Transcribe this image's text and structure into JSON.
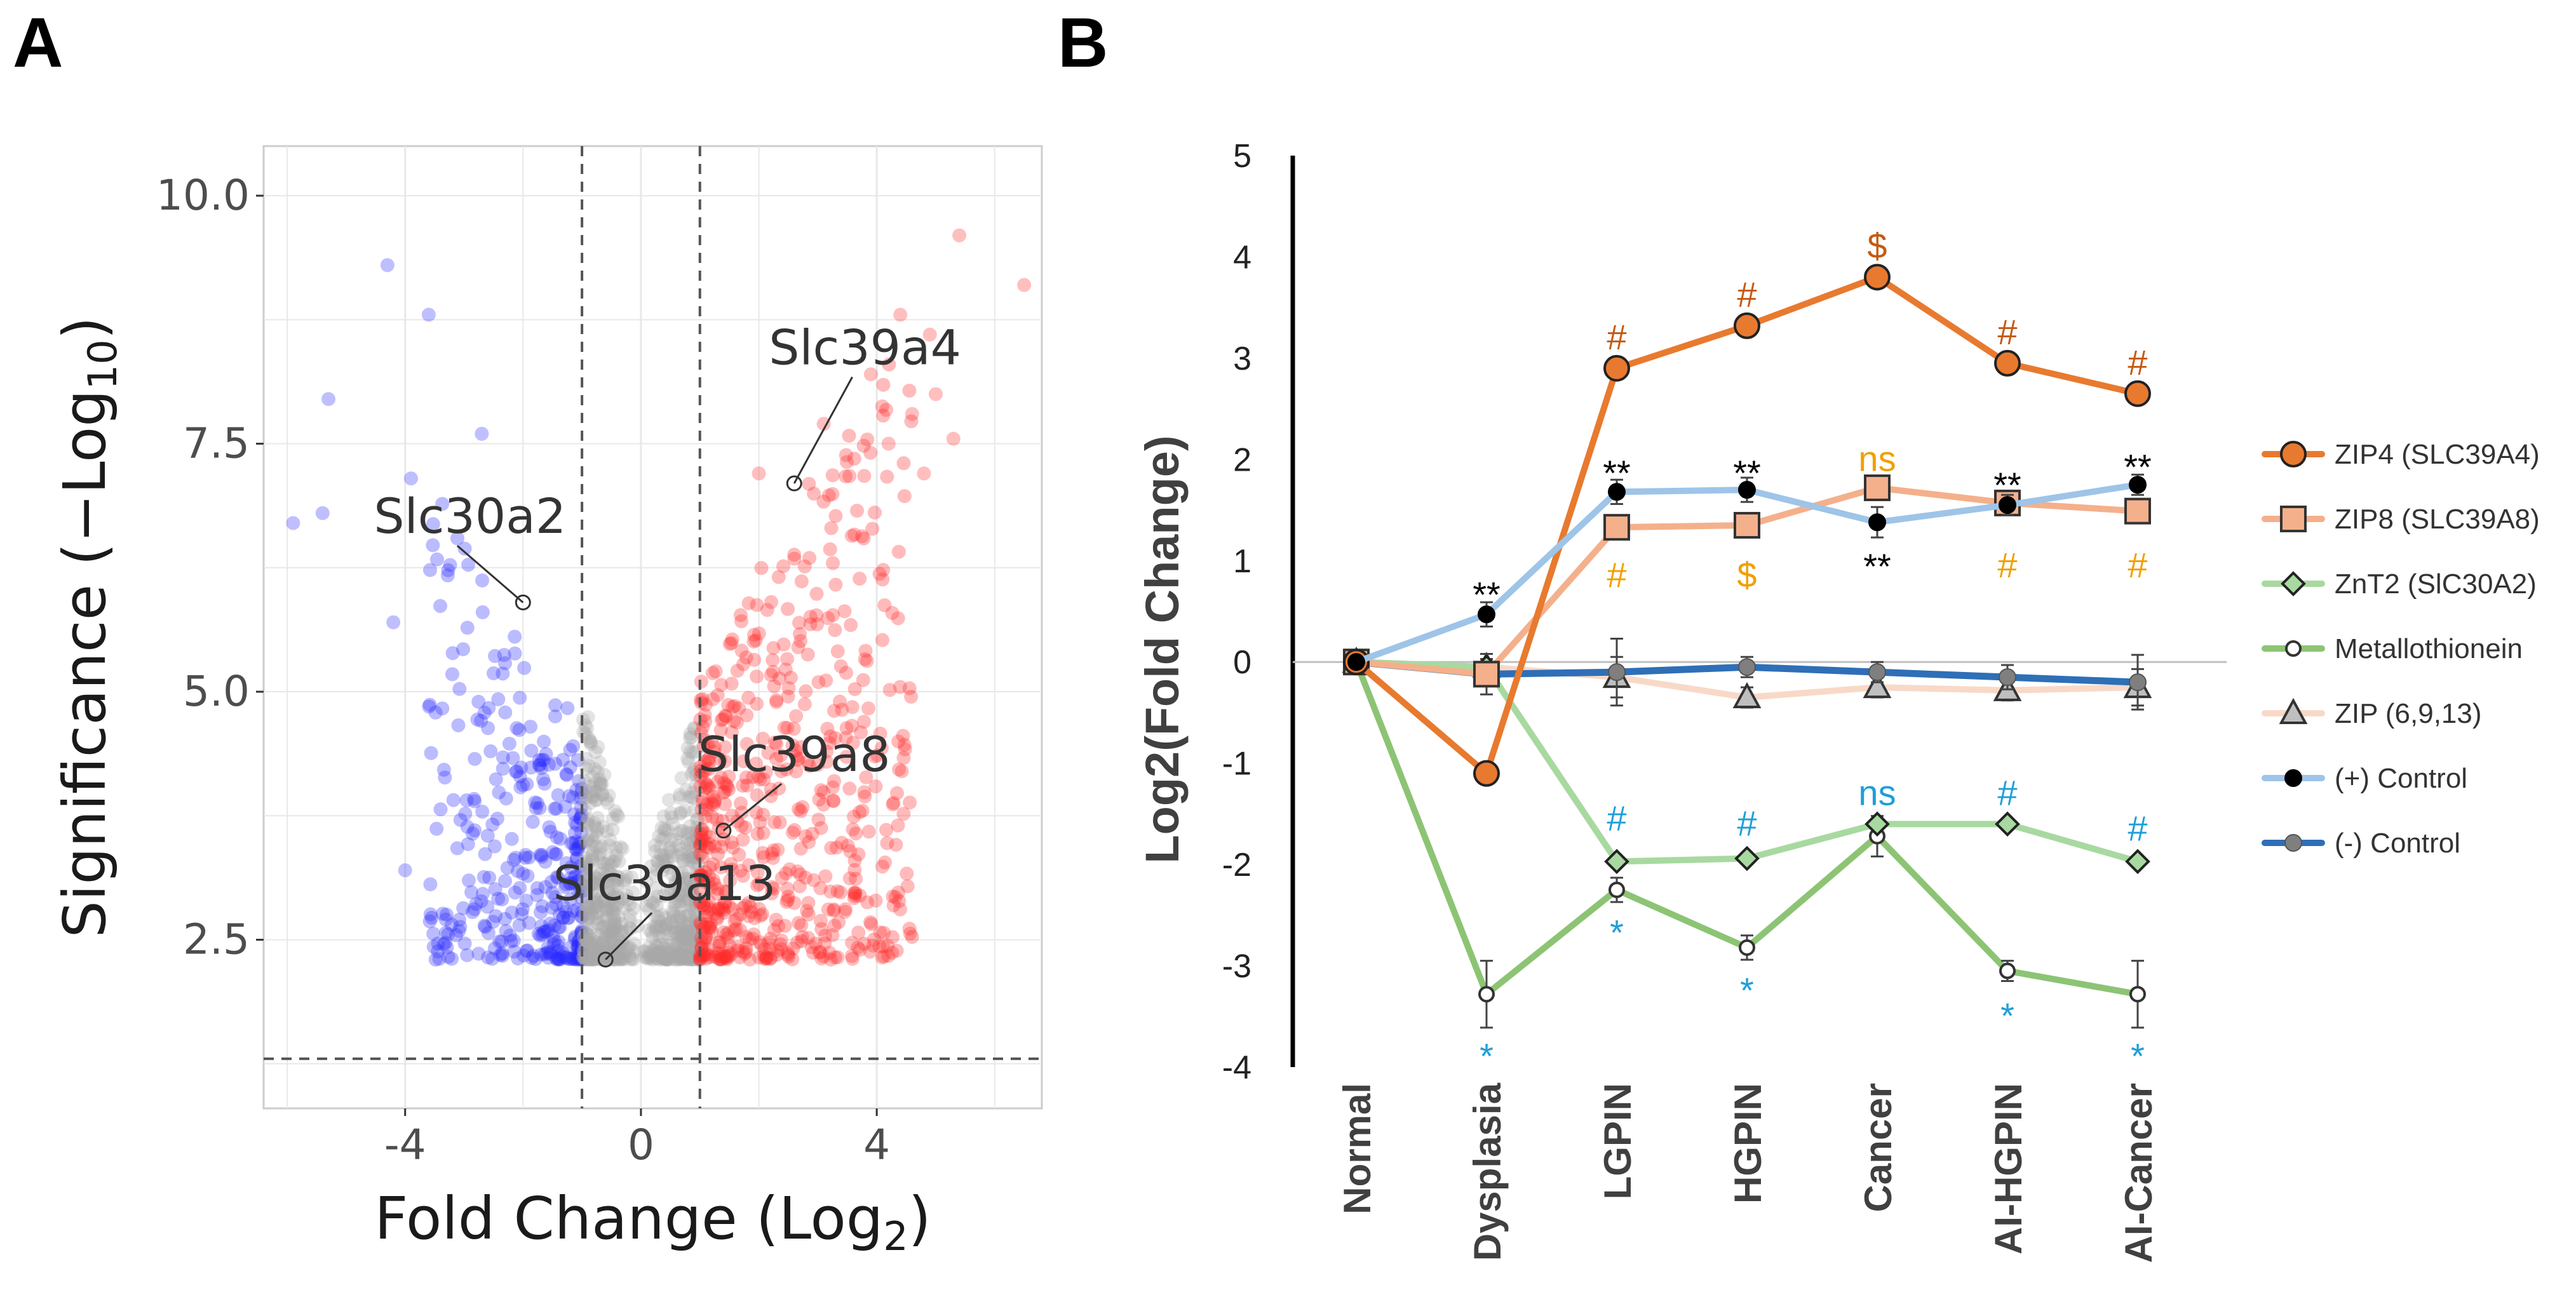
{
  "panel_labels": {
    "a": "A",
    "b": "B"
  },
  "colors": {
    "up": "#ff2a2a",
    "down": "#2a2aff",
    "ns": "#a8a8a8",
    "zip4": "#e87a2f",
    "zip8": "#f4b08b",
    "znt2": "#a8d9a0",
    "mt": "#8cc474",
    "zip6913": "#f8d9c8",
    "pos": "#9ec4e8",
    "neg": "#2e6fb7",
    "ann_hash": "#c55a11",
    "ann_ns": "#f0a000",
    "ann_blue": "#1f9fd8",
    "ann_black": "#000000"
  },
  "chart_data": [
    {
      "id": "volcano",
      "type": "scatter",
      "title": "",
      "xlabel_main": "Fold Change (Log",
      "xlabel_sub": "2",
      "xlabel_end": ")",
      "ylabel_main": "Significance (−Log",
      "ylabel_sub": "10",
      "ylabel_end": ")",
      "xlim": [
        -6.4,
        6.8
      ],
      "ylim": [
        0.8,
        10.5
      ],
      "x_ticks": [
        -4,
        0,
        4
      ],
      "x_tick_labels": [
        "-4",
        "0",
        "4"
      ],
      "y_ticks": [
        2.5,
        5.0,
        7.5,
        10.0
      ],
      "y_tick_labels": [
        "2.5",
        "5.0",
        "7.5",
        "10.0"
      ],
      "fc_cutoffs": [
        -1,
        1
      ],
      "p_cutoff": 1.3,
      "labelled_genes": [
        {
          "name": "Slc39a4",
          "x": 2.6,
          "y": 7.1,
          "label_x": 3.8,
          "label_y": 8.3
        },
        {
          "name": "Slc30a2",
          "x": -2.0,
          "y": 5.9,
          "label_x": -2.9,
          "label_y": 6.6
        },
        {
          "name": "Slc39a8",
          "x": 1.4,
          "y": 3.6,
          "label_x": 2.6,
          "label_y": 4.2
        },
        {
          "name": "Slc39a13",
          "x": -0.6,
          "y": 2.3,
          "label_x": 0.4,
          "label_y": 2.9
        }
      ],
      "outliers": [
        [
          -4.3,
          9.3
        ],
        [
          -3.6,
          8.8
        ],
        [
          -5.3,
          7.95
        ],
        [
          -2.7,
          7.6
        ],
        [
          -5.4,
          6.8
        ],
        [
          -5.9,
          6.7
        ],
        [
          -3.9,
          7.15
        ],
        [
          -4.2,
          5.7
        ],
        [
          -4.0,
          3.2
        ],
        [
          5.4,
          9.6
        ],
        [
          6.5,
          9.1
        ],
        [
          4.4,
          8.8
        ],
        [
          4.9,
          8.6
        ],
        [
          3.9,
          8.2
        ],
        [
          5.0,
          8.0
        ],
        [
          4.6,
          7.8
        ],
        [
          5.3,
          7.55
        ],
        [
          4.2,
          7.5
        ],
        [
          2.0,
          7.2
        ],
        [
          3.1,
          7.7
        ],
        [
          4.8,
          7.2
        ]
      ],
      "series": [
        {
          "name": "down",
          "x_range": [
            -3.6,
            -1.0
          ],
          "y_range": [
            2.3,
            6.9
          ],
          "count": 360
        },
        {
          "name": "ns",
          "x_range": [
            -1.0,
            1.0
          ],
          "y_range": [
            2.3,
            5.0
          ],
          "count": 700
        },
        {
          "name": "up",
          "x_range": [
            1.0,
            4.6
          ],
          "y_range": [
            2.3,
            8.3
          ],
          "count": 620
        }
      ]
    },
    {
      "id": "line-panel",
      "type": "line",
      "ylabel": "Log2(Fold Change)",
      "xlabel": "",
      "ylim": [
        -4,
        5
      ],
      "y_ticks": [
        5,
        4,
        3,
        2,
        1,
        0,
        -1,
        -2,
        -3,
        -4
      ],
      "y_tick_labels": [
        "5",
        "4",
        "3",
        "2",
        "1",
        "0",
        "-1",
        "-2",
        "-3",
        "-4"
      ],
      "categories": [
        "Normal",
        "Dysplasia",
        "LGPIN",
        "HGPIN",
        "Cancer",
        "AI-HGPIN",
        "AI-Cancer"
      ],
      "series": [
        {
          "name": "ZIP (6,9,13)",
          "key": "zip6913",
          "marker": "triangle",
          "fill": "#bfbfbf",
          "values": [
            0,
            -0.05,
            -0.15,
            -0.35,
            -0.25,
            -0.28,
            -0.25
          ],
          "err": [
            0,
            0.08,
            0.2,
            0.1,
            0.1,
            0.1,
            0.18
          ]
        },
        {
          "name": "(-) Control",
          "key": "neg",
          "marker": "dot",
          "fill": "#7f7f7f",
          "values": [
            0,
            -0.12,
            -0.1,
            -0.05,
            -0.1,
            -0.15,
            -0.2
          ],
          "err": [
            0,
            0.2,
            0.33,
            0.1,
            0.1,
            0.12,
            0.27
          ]
        },
        {
          "name": "Metallothionein",
          "key": "mt",
          "marker": "ring",
          "fill": "#ffffff",
          "values": [
            0,
            -3.28,
            -2.25,
            -2.82,
            -1.72,
            -3.05,
            -3.28
          ],
          "err": [
            0,
            0.33,
            0.12,
            0.12,
            0.2,
            0.1,
            0.33
          ]
        },
        {
          "name": "ZnT2 (SlC30A2)",
          "key": "znt2",
          "marker": "diamond",
          "fill": "#a8d9a0",
          "values": [
            0,
            -0.05,
            -1.97,
            -1.94,
            -1.6,
            -1.6,
            -1.97
          ],
          "err": [
            0,
            0,
            0,
            0,
            0,
            0,
            0
          ]
        },
        {
          "name": "ZIP8 (SLC39A8)",
          "key": "zip8",
          "marker": "square",
          "fill": "#f4b08b",
          "values": [
            0,
            -0.12,
            1.33,
            1.35,
            1.72,
            1.57,
            1.49
          ],
          "err": [
            0,
            0,
            0,
            0,
            0,
            0,
            0
          ]
        },
        {
          "name": "ZIP4 (SLC39A4)",
          "key": "zip4",
          "marker": "circle",
          "fill": "#e87a2f",
          "values": [
            0,
            -1.1,
            2.9,
            3.32,
            3.8,
            2.95,
            2.65
          ],
          "err": [
            0,
            0,
            0,
            0,
            0,
            0,
            0
          ]
        },
        {
          "name": "(+) Control",
          "key": "pos",
          "marker": "dot",
          "fill": "#000000",
          "values": [
            0,
            0.47,
            1.68,
            1.7,
            1.38,
            1.55,
            1.75
          ],
          "err": [
            0,
            0.12,
            0.12,
            0.12,
            0.15,
            0.1,
            0.1
          ]
        }
      ],
      "legend_order": [
        "ZIP4 (SLC39A4)",
        "ZIP8 (SLC39A8)",
        "ZnT2 (SlC30A2)",
        "Metallothionein",
        "ZIP (6,9,13)",
        "(+) Control",
        "(-) Control"
      ],
      "annotations": [
        {
          "text": "**",
          "cat": 1,
          "y": 0.72,
          "color": "ann_black"
        },
        {
          "text": "*",
          "cat": 1,
          "y": -3.9,
          "color": "ann_blue"
        },
        {
          "text": "#",
          "cat": 2,
          "y": 3.2,
          "color": "ann_hash"
        },
        {
          "text": "**",
          "cat": 2,
          "y": 1.92,
          "color": "ann_black"
        },
        {
          "text": "#",
          "cat": 2,
          "y": 0.85,
          "color": "ann_ns"
        },
        {
          "text": "#",
          "cat": 2,
          "y": -1.55,
          "color": "ann_blue"
        },
        {
          "text": "*",
          "cat": 2,
          "y": -2.68,
          "color": "ann_blue"
        },
        {
          "text": "#",
          "cat": 3,
          "y": 3.62,
          "color": "ann_hash"
        },
        {
          "text": "**",
          "cat": 3,
          "y": 1.92,
          "color": "ann_black"
        },
        {
          "text": "$",
          "cat": 3,
          "y": 0.85,
          "color": "ann_ns"
        },
        {
          "text": "#",
          "cat": 3,
          "y": -1.6,
          "color": "ann_blue"
        },
        {
          "text": "*",
          "cat": 3,
          "y": -3.25,
          "color": "ann_blue"
        },
        {
          "text": "$",
          "cat": 4,
          "y": 4.1,
          "color": "ann_hash"
        },
        {
          "text": "ns",
          "cat": 4,
          "y": 2.0,
          "color": "ann_ns"
        },
        {
          "text": "**",
          "cat": 4,
          "y": 1.0,
          "color": "ann_black"
        },
        {
          "text": "ns",
          "cat": 4,
          "y": -1.3,
          "color": "ann_blue"
        },
        {
          "text": "#",
          "cat": 4,
          "y": -1.3,
          "color": "ann_blue",
          "skip": true
        },
        {
          "text": "#",
          "cat": 5,
          "y": 3.25,
          "color": "ann_hash"
        },
        {
          "text": "**",
          "cat": 5,
          "y": 1.8,
          "color": "ann_black"
        },
        {
          "text": "#",
          "cat": 5,
          "y": 0.95,
          "color": "ann_ns"
        },
        {
          "text": "#",
          "cat": 5,
          "y": -1.3,
          "color": "ann_blue"
        },
        {
          "text": "*",
          "cat": 5,
          "y": -3.5,
          "color": "ann_blue"
        },
        {
          "text": "#",
          "cat": 6,
          "y": 2.95,
          "color": "ann_hash"
        },
        {
          "text": "**",
          "cat": 6,
          "y": 1.98,
          "color": "ann_black"
        },
        {
          "text": "#",
          "cat": 6,
          "y": 0.95,
          "color": "ann_ns"
        },
        {
          "text": "#",
          "cat": 6,
          "y": -1.65,
          "color": "ann_blue"
        },
        {
          "text": "*",
          "cat": 6,
          "y": -3.9,
          "color": "ann_blue"
        }
      ]
    }
  ]
}
